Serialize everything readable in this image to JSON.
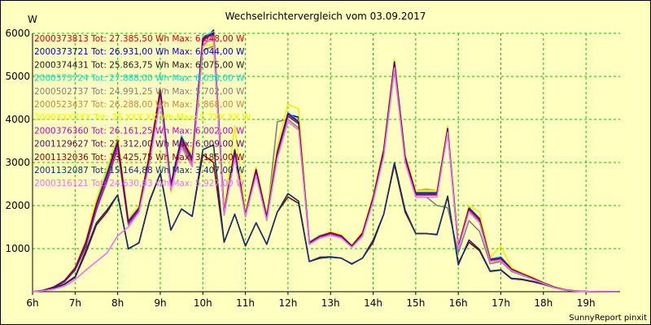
{
  "chart_data": {
    "type": "line",
    "title": "Wechselrichtervergleich vom 03.09.2017",
    "ylabel": "W",
    "xlabel": "",
    "ylim": [
      0,
      6000
    ],
    "yticks": [
      1000,
      2000,
      3000,
      4000,
      5000,
      6000
    ],
    "xlim": [
      6.0,
      19.8
    ],
    "xticks": [
      {
        "value": 6,
        "label": "6h"
      },
      {
        "value": 7,
        "label": "7h"
      },
      {
        "value": 8,
        "label": "8h"
      },
      {
        "value": 9,
        "label": "9h"
      },
      {
        "value": 10,
        "label": "10h"
      },
      {
        "value": 11,
        "label": "11h"
      },
      {
        "value": 12,
        "label": "12h"
      },
      {
        "value": 13,
        "label": "13h"
      },
      {
        "value": 14,
        "label": "14h"
      },
      {
        "value": 15,
        "label": "15h"
      },
      {
        "value": 16,
        "label": "16h"
      },
      {
        "value": 17,
        "label": "17h"
      },
      {
        "value": 18,
        "label": "18h"
      },
      {
        "value": 19,
        "label": "19h"
      }
    ],
    "grid": true,
    "legend_position": "top-left",
    "credit": "SunnyReport pinxit",
    "x": [
      6.0,
      6.25,
      6.5,
      6.75,
      7.0,
      7.25,
      7.5,
      7.75,
      8.0,
      8.25,
      8.5,
      8.75,
      9.0,
      9.25,
      9.5,
      9.75,
      10.0,
      10.25,
      10.5,
      10.75,
      11.0,
      11.25,
      11.5,
      11.75,
      12.0,
      12.25,
      12.5,
      12.75,
      13.0,
      13.25,
      13.5,
      13.75,
      14.0,
      14.25,
      14.5,
      14.75,
      15.0,
      15.25,
      15.5,
      15.75,
      16.0,
      16.25,
      16.5,
      16.75,
      17.0,
      17.25,
      17.5,
      17.75,
      18.0,
      18.25,
      18.5,
      18.75,
      19.0,
      19.25,
      19.5,
      19.75
    ],
    "series": [
      {
        "name": "2000373813 Tot: 27.385,50 Wh Max: 6.048,00 W",
        "color": "#e00000",
        "values": [
          0,
          30,
          110,
          260,
          560,
          1150,
          2050,
          2750,
          3500,
          1640,
          1950,
          3200,
          4700,
          2500,
          3600,
          3100,
          5900,
          6000,
          1850,
          3300,
          1800,
          2850,
          1750,
          3250,
          4150,
          3950,
          1150,
          1300,
          1380,
          1300,
          1070,
          1370,
          2200,
          3300,
          5350,
          3150,
          2300,
          2300,
          2300,
          3800,
          1050,
          1950,
          1700,
          750,
          800,
          530,
          420,
          320,
          210,
          110,
          50,
          20,
          5,
          0,
          0,
          0
        ]
      },
      {
        "name": "2000373721 Tot: 26.931,00 Wh Max: 6.044,00 W",
        "color": "#0000c8",
        "values": [
          0,
          30,
          110,
          250,
          540,
          1120,
          2000,
          2700,
          3450,
          1620,
          1920,
          3180,
          4680,
          2450,
          3550,
          3050,
          5850,
          5980,
          1830,
          3280,
          1780,
          2820,
          1730,
          3230,
          4120,
          4050,
          1130,
          1280,
          1360,
          1290,
          1060,
          1350,
          2180,
          3270,
          5320,
          3120,
          2280,
          2280,
          2280,
          3780,
          1040,
          1930,
          1680,
          740,
          780,
          520,
          410,
          310,
          200,
          105,
          45,
          18,
          5,
          0,
          0,
          0
        ]
      },
      {
        "name": "2000374431 Tot: 25.863,75 Wh Max: 6.075,00 W",
        "color": "#1a1a1a",
        "values": [
          0,
          30,
          100,
          230,
          500,
          1050,
          1900,
          2600,
          3350,
          1580,
          1880,
          3100,
          4600,
          2400,
          3450,
          2980,
          5800,
          6075,
          1800,
          3200,
          1760,
          2780,
          1700,
          3180,
          4080,
          3900,
          1110,
          1260,
          1330,
          1270,
          1040,
          1320,
          2150,
          3230,
          5250,
          3080,
          2250,
          2250,
          2250,
          3720,
          1020,
          1900,
          1650,
          730,
          760,
          510,
          400,
          300,
          195,
          100,
          45,
          18,
          5,
          0,
          0,
          0
        ]
      },
      {
        "name": "2000373724 Tot: 27.888,00 Wh Max: 6.038,00 W",
        "color": "#00d8d8",
        "values": [
          0,
          30,
          110,
          260,
          560,
          1160,
          2080,
          2780,
          3550,
          1660,
          1970,
          3230,
          4720,
          2520,
          3620,
          3120,
          5920,
          6038,
          1860,
          3310,
          1810,
          2860,
          1760,
          3260,
          4160,
          3970,
          1160,
          1310,
          1390,
          1310,
          1080,
          1380,
          2210,
          3310,
          5360,
          3160,
          2310,
          2310,
          2310,
          3810,
          1060,
          1960,
          1710,
          760,
          810,
          540,
          430,
          330,
          215,
          112,
          52,
          20,
          5,
          0,
          0,
          0
        ]
      },
      {
        "name": "2000502737 Tot: 24.991,25 Wh Max: 5.702,00 W",
        "color": "#808080",
        "values": [
          0,
          30,
          110,
          250,
          520,
          1080,
          1900,
          2550,
          3300,
          1550,
          1850,
          3050,
          4500,
          2350,
          3400,
          2950,
          5600,
          5702,
          1780,
          3150,
          1740,
          2750,
          1680,
          3950,
          4000,
          3800,
          1100,
          1250,
          1320,
          1260,
          1040,
          1310,
          2120,
          3180,
          5150,
          3050,
          2200,
          2200,
          2000,
          1950,
          900,
          1650,
          1400,
          650,
          700,
          470,
          380,
          290,
          190,
          95,
          42,
          16,
          5,
          0,
          0,
          0
        ]
      },
      {
        "name": "2000523437 Tot: 26.288,00 Wh Max: 5.868,00 W",
        "color": "#c88a3c",
        "values": [
          0,
          30,
          105,
          245,
          530,
          1100,
          1950,
          2650,
          3400,
          1600,
          1900,
          3120,
          4620,
          2420,
          3480,
          3000,
          5750,
          5868,
          1820,
          3230,
          1770,
          2800,
          1710,
          3200,
          4100,
          3920,
          1120,
          1270,
          1340,
          1280,
          1050,
          1330,
          2160,
          3250,
          5280,
          3100,
          2350,
          2380,
          2350,
          3750,
          1030,
          1910,
          1660,
          735,
          770,
          515,
          405,
          305,
          198,
          102,
          46,
          18,
          5,
          0,
          0,
          0
        ]
      },
      {
        "name": "2000XXXXXX Tot: 26.XXX,XX Wh Max: 5.7XX,XX W",
        "color": "#f0f000",
        "values": [
          0,
          30,
          110,
          260,
          580,
          1200,
          2150,
          2900,
          3600,
          1700,
          2000,
          3300,
          4750,
          2300,
          3550,
          3200,
          5700,
          5750,
          1900,
          3850,
          1850,
          2900,
          1800,
          3400,
          4350,
          4250,
          1150,
          1300,
          1400,
          1320,
          1080,
          1400,
          2250,
          3350,
          5400,
          3200,
          2350,
          2350,
          2350,
          3850,
          1080,
          2000,
          1850,
          800,
          1050,
          560,
          440,
          340,
          220,
          115,
          55,
          22,
          5,
          0,
          0,
          0
        ]
      },
      {
        "name": "2000376360 Tot: 26.161,25 Wh Max: 6.002,00 W",
        "color": "#c800c8",
        "values": [
          0,
          30,
          105,
          240,
          520,
          1080,
          1920,
          2620,
          3380,
          1590,
          1890,
          3120,
          4650,
          2460,
          3520,
          3030,
          5820,
          6002,
          1820,
          3240,
          1770,
          2810,
          1720,
          3210,
          4110,
          3930,
          1120,
          1270,
          1350,
          1280,
          1050,
          1340,
          2170,
          3260,
          5300,
          3110,
          2270,
          2270,
          2270,
          3760,
          1030,
          1920,
          1670,
          740,
          770,
          515,
          405,
          305,
          198,
          102,
          46,
          18,
          5,
          0,
          0,
          0
        ]
      },
      {
        "name": "2001129627 Tot: 27.312,00 Wh Max: 6.009,00 W",
        "color": "#600060",
        "values": [
          0,
          30,
          110,
          255,
          550,
          1140,
          2030,
          2730,
          3480,
          1630,
          1940,
          3190,
          4690,
          2480,
          3580,
          3080,
          5880,
          6009,
          1840,
          3290,
          1790,
          2840,
          1740,
          3240,
          4140,
          3940,
          1140,
          1290,
          1370,
          1300,
          1065,
          1360,
          2190,
          3290,
          5340,
          3140,
          2290,
          2290,
          2290,
          3790,
          1045,
          1940,
          1690,
          745,
          790,
          525,
          415,
          315,
          205,
          108,
          48,
          19,
          5,
          0,
          0,
          0
        ]
      },
      {
        "name": "2001132036 Tot: 13.425,75 Wh Max: 3.185,00 W",
        "color": "#8b0000",
        "values": [
          0,
          25,
          80,
          170,
          330,
          900,
          1550,
          1850,
          2250,
          1000,
          1130,
          2100,
          2750,
          1430,
          1920,
          1750,
          3185,
          3000,
          1150,
          1800,
          1060,
          1600,
          1100,
          1850,
          2200,
          2050,
          700,
          780,
          800,
          780,
          650,
          780,
          1150,
          1800,
          2950,
          1850,
          1350,
          1350,
          1330,
          2200,
          660,
          1150,
          950,
          470,
          500,
          300,
          280,
          230,
          170,
          95,
          40,
          15,
          5,
          0,
          0,
          0
        ]
      },
      {
        "name": "2001132087 Tot: 15.164,88 Wh Max: 3.407,00 W",
        "color": "#103070",
        "values": [
          0,
          25,
          85,
          180,
          350,
          950,
          1600,
          1900,
          2250,
          990,
          1140,
          2120,
          2750,
          1430,
          1920,
          1750,
          3300,
          3407,
          1150,
          1800,
          1060,
          1600,
          1100,
          1850,
          2280,
          2100,
          700,
          800,
          810,
          780,
          640,
          780,
          1200,
          1800,
          3000,
          1900,
          1350,
          1350,
          1320,
          2220,
          620,
          1200,
          980,
          480,
          510,
          310,
          290,
          240,
          180,
          100,
          42,
          15,
          5,
          0,
          0,
          0
        ]
      },
      {
        "name": "2000316121 Tot: 24.630,63 Wh Max: 5.927,00 W",
        "color": "#f070f0",
        "values": [
          0,
          20,
          60,
          130,
          280,
          500,
          700,
          900,
          1300,
          1500,
          1850,
          3000,
          4450,
          2350,
          3350,
          2900,
          5700,
          5927,
          1800,
          3100,
          1750,
          2700,
          1650,
          3100,
          3950,
          3750,
          1100,
          1250,
          1310,
          1250,
          1030,
          1290,
          2100,
          3150,
          5200,
          3000,
          2200,
          2200,
          2200,
          3700,
          1000,
          1850,
          1600,
          700,
          720,
          490,
          390,
          290,
          190,
          95,
          42,
          16,
          5,
          0,
          0,
          0
        ]
      }
    ]
  }
}
